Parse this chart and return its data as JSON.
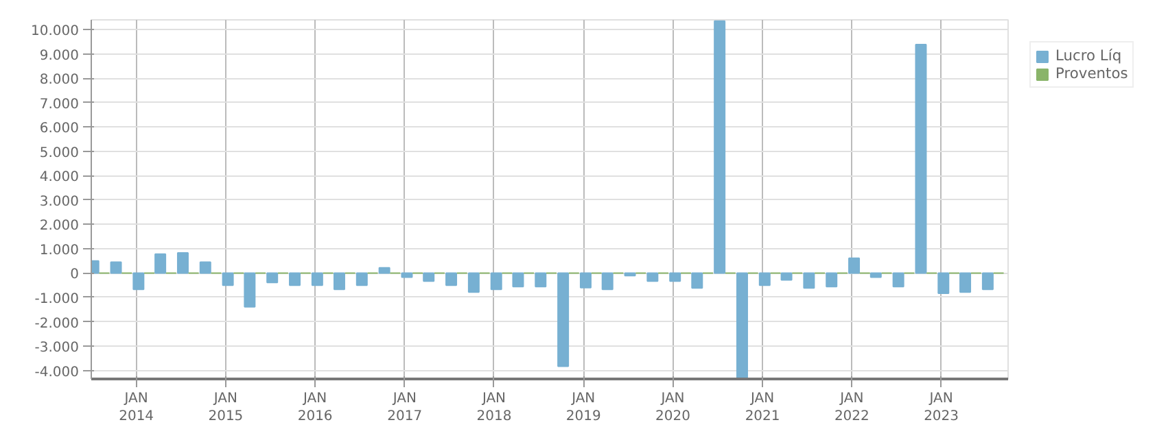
{
  "chart_data": {
    "type": "bar",
    "x": [
      "2013-08",
      "2013-11",
      "2014-02",
      "2014-05",
      "2014-08",
      "2014-11",
      "2015-02",
      "2015-05",
      "2015-08",
      "2015-11",
      "2016-02",
      "2016-05",
      "2016-08",
      "2016-11",
      "2017-02",
      "2017-05",
      "2017-08",
      "2017-11",
      "2018-02",
      "2018-05",
      "2018-08",
      "2018-11",
      "2019-02",
      "2019-05",
      "2019-08",
      "2019-11",
      "2020-02",
      "2020-05",
      "2020-08",
      "2020-11",
      "2021-02",
      "2021-05",
      "2021-08",
      "2021-11",
      "2022-02",
      "2022-05",
      "2022-08",
      "2022-11",
      "2023-02",
      "2023-05",
      "2023-08"
    ],
    "series": [
      {
        "name": "Lucro Líq",
        "color": "#77b0d2",
        "values": [
          500,
          450,
          -670,
          780,
          830,
          450,
          -500,
          -1390,
          -390,
          -500,
          -500,
          -670,
          -500,
          220,
          -170,
          -330,
          -500,
          -780,
          -670,
          -560,
          -560,
          -3830,
          -600,
          -670,
          -110,
          -330,
          -330,
          -610,
          10350,
          -4300,
          -500,
          -280,
          -610,
          -560,
          610,
          -170,
          -560,
          9390,
          -830,
          -780,
          -670
        ]
      },
      {
        "name": "Proventos",
        "color": "#8ab46a",
        "values": [
          0,
          0,
          0,
          0,
          0,
          0,
          0,
          0,
          0,
          0,
          0,
          0,
          0,
          0,
          0,
          0,
          0,
          0,
          0,
          0,
          0,
          0,
          0,
          0,
          0,
          0,
          0,
          0,
          0,
          0,
          0,
          0,
          0,
          0,
          0,
          0,
          0,
          0,
          0,
          0,
          0
        ]
      }
    ],
    "xlim": [
      "2013-07",
      "2023-10"
    ],
    "xticks": [
      {
        "value": "2014-01",
        "label": "JAN\n2014"
      },
      {
        "value": "2015-01",
        "label": "JAN\n2015"
      },
      {
        "value": "2016-01",
        "label": "JAN\n2016"
      },
      {
        "value": "2017-01",
        "label": "JAN\n2017"
      },
      {
        "value": "2018-01",
        "label": "JAN\n2018"
      },
      {
        "value": "2019-01",
        "label": "JAN\n2019"
      },
      {
        "value": "2020-01",
        "label": "JAN\n2020"
      },
      {
        "value": "2021-01",
        "label": "JAN\n2021"
      },
      {
        "value": "2022-01",
        "label": "JAN\n2022"
      },
      {
        "value": "2023-01",
        "label": "JAN\n2023"
      }
    ],
    "ylim": [
      -4350,
      10400
    ],
    "yticks": [
      {
        "value": -4000,
        "label": "-4.000"
      },
      {
        "value": -3000,
        "label": "-3.000"
      },
      {
        "value": -2000,
        "label": "-2.000"
      },
      {
        "value": -1000,
        "label": "-1.000"
      },
      0,
      {
        "value": 1000,
        "label": "1.000"
      },
      {
        "value": 2000,
        "label": "2.000"
      },
      {
        "value": 3000,
        "label": "3.000"
      },
      {
        "value": 4000,
        "label": "4.000"
      },
      {
        "value": 5000,
        "label": "5.000"
      },
      {
        "value": 6000,
        "label": "6.000"
      },
      {
        "value": 7000,
        "label": "7.000"
      },
      {
        "value": 8000,
        "label": "8.000"
      },
      {
        "value": 9000,
        "label": "9.000"
      },
      {
        "value": 10000,
        "label": "10.000"
      }
    ],
    "grid": true,
    "legend": "top right"
  }
}
